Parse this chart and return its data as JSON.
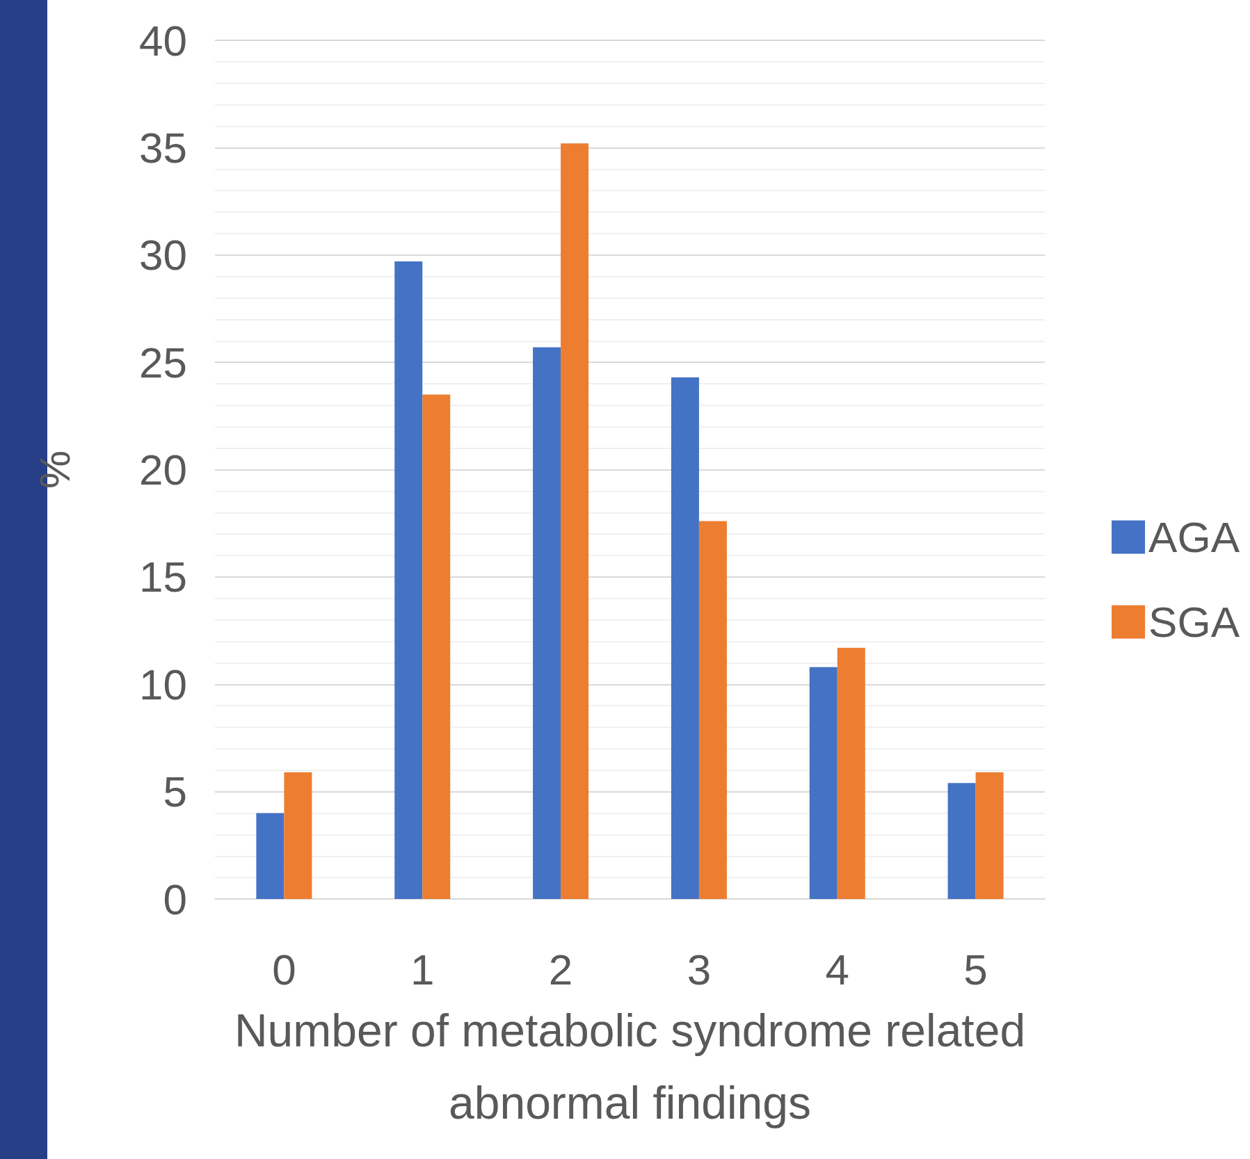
{
  "chart_data": {
    "type": "bar",
    "xlabel": "Number of metabolic syndrome related\nabnormal findings",
    "ylabel": "%",
    "categories": [
      "0",
      "1",
      "2",
      "3",
      "4",
      "5"
    ],
    "series": [
      {
        "name": "AGA",
        "color": "#4472c4",
        "values": [
          4.0,
          29.7,
          25.7,
          24.3,
          10.8,
          5.4
        ]
      },
      {
        "name": "SGA",
        "color": "#ed7d31",
        "values": [
          5.9,
          23.5,
          35.2,
          17.6,
          11.7,
          5.9
        ]
      }
    ],
    "ylim": [
      0,
      40
    ],
    "yticks": [
      0,
      5,
      10,
      15,
      20,
      25,
      30,
      35,
      40
    ],
    "grid": "y",
    "legend": "right"
  }
}
